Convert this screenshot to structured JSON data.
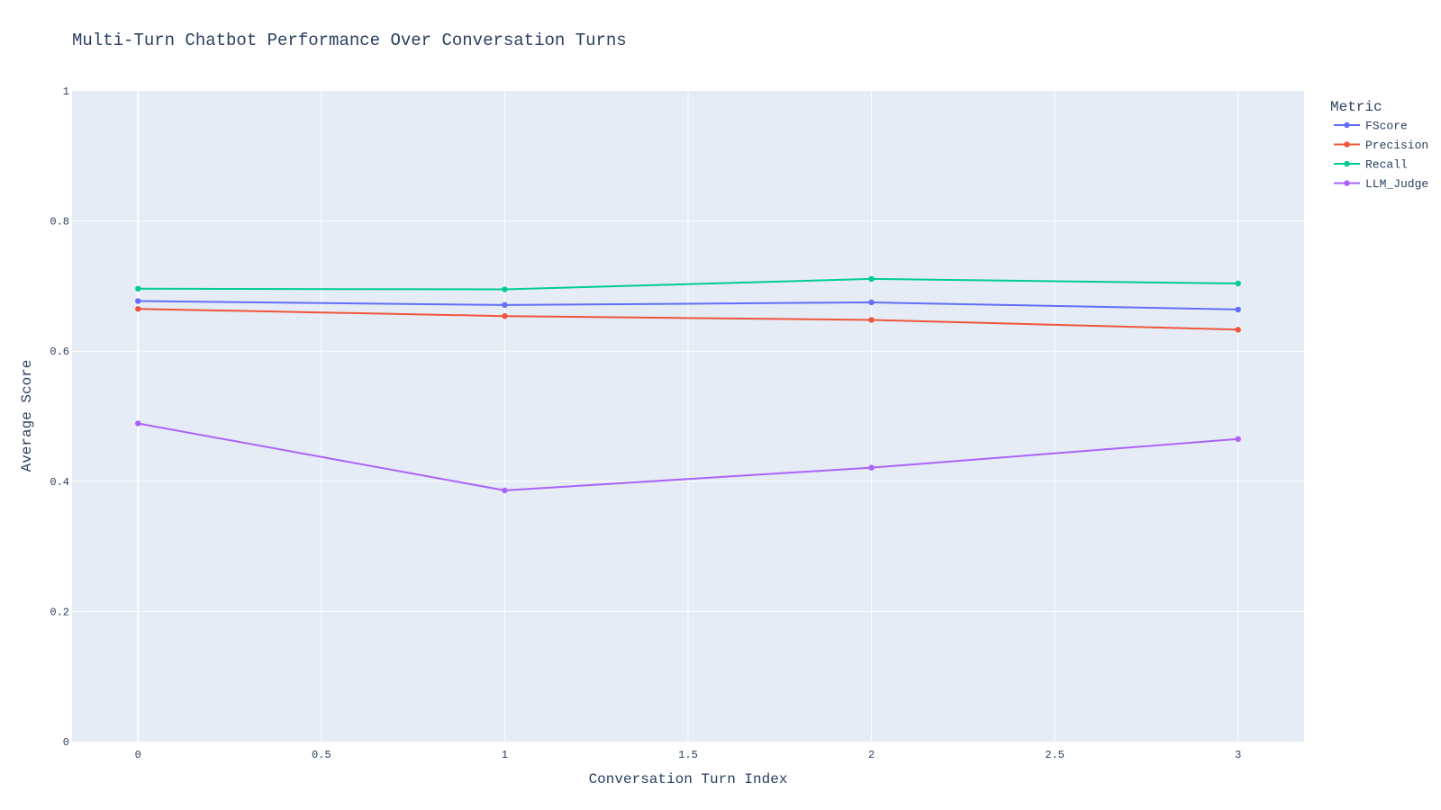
{
  "chart_data": {
    "type": "line",
    "title": "Multi-Turn Chatbot Performance Over Conversation Turns",
    "xlabel": "Conversation Turn Index",
    "ylabel": "Average Score",
    "xlim": [
      -0.18,
      3.18
    ],
    "ylim": [
      0,
      1
    ],
    "x_ticks": [
      0,
      0.5,
      1,
      1.5,
      2,
      2.5,
      3
    ],
    "x_tick_labels": [
      "0",
      "0.5",
      "1",
      "1.5",
      "2",
      "2.5",
      "3"
    ],
    "y_ticks": [
      0,
      0.2,
      0.4,
      0.6,
      0.8,
      1
    ],
    "y_tick_labels": [
      "0",
      "0.2",
      "0.4",
      "0.6",
      "0.8",
      "1"
    ],
    "grid": true,
    "legend_title": "Metric",
    "legend_position": "top-right",
    "x": [
      0,
      1,
      2,
      3
    ],
    "series": [
      {
        "name": "FScore",
        "color": "#636efa",
        "values": [
          0.677,
          0.671,
          0.675,
          0.664
        ]
      },
      {
        "name": "Precision",
        "color": "#ef553b",
        "values": [
          0.665,
          0.654,
          0.648,
          0.633
        ]
      },
      {
        "name": "Recall",
        "color": "#00cc96",
        "values": [
          0.696,
          0.695,
          0.711,
          0.704
        ]
      },
      {
        "name": "LLM_Judge",
        "color": "#ab63fa",
        "values": [
          0.489,
          0.386,
          0.421,
          0.465
        ]
      }
    ]
  },
  "colors": {
    "plot_background": "#e5ecf6",
    "grid": "#ffffff",
    "text": "#2a3f5f"
  }
}
